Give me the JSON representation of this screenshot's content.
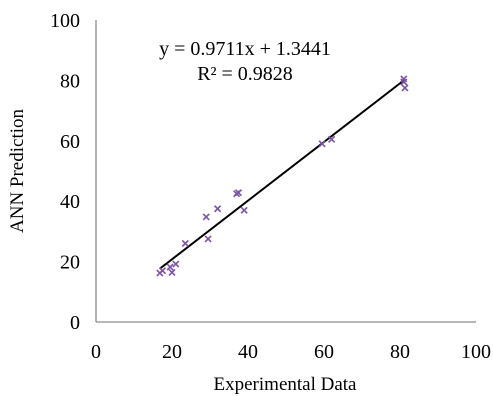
{
  "chart_data": {
    "type": "scatter",
    "xlabel": "Experimental Data",
    "ylabel": "ANN Prediction",
    "xlim": [
      0,
      100
    ],
    "ylim": [
      0,
      100
    ],
    "xticks": [
      "0",
      "20",
      "40",
      "60",
      "80",
      "100"
    ],
    "yticks": [
      "0",
      "20",
      "40",
      "60",
      "80",
      "100"
    ],
    "grid": false,
    "marker": "x",
    "marker_color": "#7b52a8",
    "line_color": "#000000",
    "points": [
      [
        16.8,
        16.2
      ],
      [
        17.5,
        17.0
      ],
      [
        19.5,
        18.2
      ],
      [
        20.0,
        16.4
      ],
      [
        21.0,
        19.2
      ],
      [
        23.5,
        26.0
      ],
      [
        29.0,
        34.8
      ],
      [
        29.5,
        27.5
      ],
      [
        32.0,
        37.5
      ],
      [
        37.0,
        42.5
      ],
      [
        37.5,
        42.8
      ],
      [
        39.0,
        37.0
      ],
      [
        59.5,
        59.0
      ],
      [
        62.0,
        60.5
      ],
      [
        81.0,
        80.5
      ],
      [
        81.0,
        79.5
      ],
      [
        81.3,
        77.5
      ]
    ],
    "trendline": {
      "equation": "y = 0.9711x + 1.3441",
      "r_squared": "R² = 0.9828",
      "slope": 0.9711,
      "intercept": 1.3441,
      "x_range": [
        16.8,
        81.3
      ]
    }
  }
}
